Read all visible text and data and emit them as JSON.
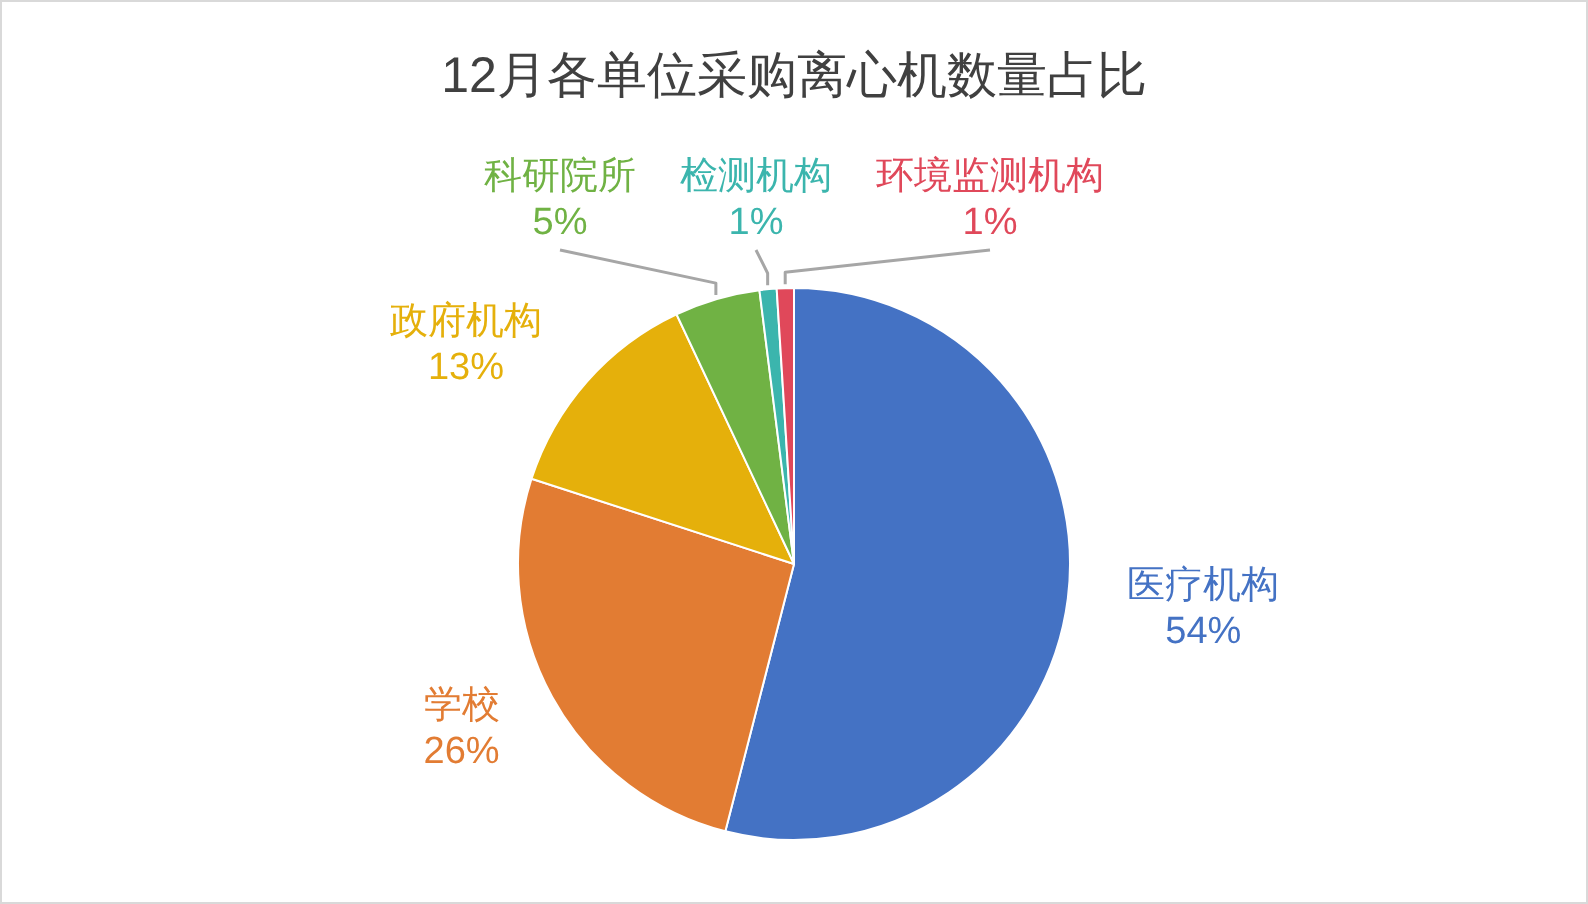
{
  "chart_data": {
    "type": "pie",
    "title": "12月各单位采购离心机数量占比",
    "categories": [
      "医疗机构",
      "学校",
      "政府机构",
      "科研院所",
      "检测机构",
      "环境监测机构"
    ],
    "values": [
      54,
      26,
      13,
      5,
      1,
      1
    ],
    "colors": [
      "#4472c4",
      "#e27c33",
      "#e5b00b",
      "#70b244",
      "#3bb5ad",
      "#e0485a"
    ],
    "value_labels": [
      "54%",
      "26%",
      "13%",
      "5%",
      "1%",
      "1%"
    ]
  }
}
